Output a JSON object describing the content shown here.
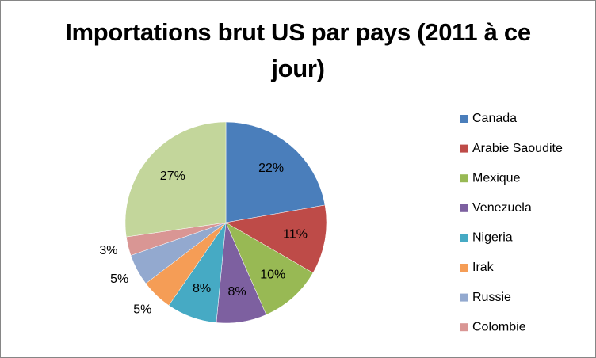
{
  "chart_data": {
    "type": "pie",
    "title": "Importations brut US par pays (2011 à ce jour)",
    "categories": [
      "Canada",
      "Arabie Saoudite",
      "Mexique",
      "Venezuela",
      "Nigeria",
      "Irak",
      "Russie",
      "Colombie",
      null
    ],
    "values": [
      22,
      11,
      10,
      8,
      8,
      5,
      5,
      3,
      27
    ],
    "value_labels": [
      "22%",
      "11%",
      "10%",
      "8%",
      "8%",
      "5%",
      "5%",
      "3%",
      "27%"
    ],
    "colors": [
      "#4a7ebb",
      "#be4b48",
      "#98b954",
      "#7d60a0",
      "#46aac4",
      "#f59d56",
      "#93a9cf",
      "#d99694",
      "#c3d69b"
    ],
    "legend": "right"
  }
}
